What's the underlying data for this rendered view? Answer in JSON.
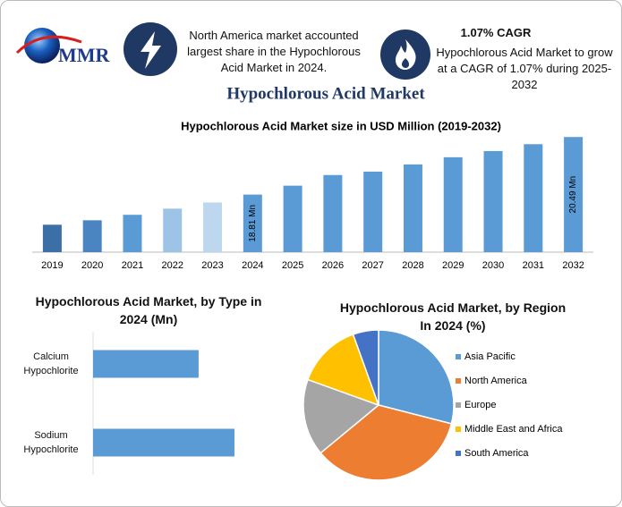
{
  "header": {
    "logo": "MMR",
    "fact1": "North America market accounted largest share in the Hypochlorous Acid Market in 2024.",
    "fact2_title": "1.07% CAGR",
    "fact2_text": "Hypochlorous Acid Market to grow at a CAGR of 1.07% during 2025-2032",
    "title": "Hypochlorous Acid Market"
  },
  "chart_data": [
    {
      "type": "bar",
      "title": "Hypochlorous Acid Market size in USD Million (2019-2032)",
      "categories": [
        "2019",
        "2020",
        "2021",
        "2022",
        "2023",
        "2024",
        "2025",
        "2026",
        "2027",
        "2028",
        "2029",
        "2030",
        "2031",
        "2032"
      ],
      "values": [
        17.93,
        18.06,
        18.22,
        18.4,
        18.58,
        18.81,
        19.07,
        19.38,
        19.48,
        19.69,
        19.9,
        20.08,
        20.28,
        20.49
      ],
      "value_labels": [
        null,
        null,
        null,
        null,
        null,
        "18.81 Mn",
        null,
        null,
        null,
        null,
        null,
        null,
        null,
        "20.49 Mn"
      ],
      "colors": [
        "#3b6fa6",
        "#4a85c2",
        "#5b9bd5",
        "#9dc3e6",
        "#bdd7ee",
        "#5b9bd5",
        "#5b9bd5",
        "#5b9bd5",
        "#5b9bd5",
        "#5b9bd5",
        "#5b9bd5",
        "#5b9bd5",
        "#5b9bd5",
        "#5b9bd5"
      ],
      "ylim": [
        17.13,
        20.6
      ]
    },
    {
      "type": "bar",
      "orientation": "horizontal",
      "title": "Hypochlorous Acid Market, by Type in 2024 (Mn)",
      "categories": [
        "Calcium Hypochlorite",
        "Sodium Hypochlorite"
      ],
      "values": [
        8.04,
        10.77
      ],
      "color": "#5b9bd5",
      "xlim": [
        0,
        12
      ]
    },
    {
      "type": "pie",
      "title": "Hypochlorous Acid Market, by Region In 2024 (%)",
      "categories": [
        "Asia Pacific",
        "North America",
        "Europe",
        "Middle East and Africa",
        "South America"
      ],
      "values": [
        29,
        35,
        16.5,
        14,
        5.5
      ],
      "colors": [
        "#5b9bd5",
        "#ed7d31",
        "#a5a5a5",
        "#ffc000",
        "#4472c4"
      ]
    }
  ]
}
